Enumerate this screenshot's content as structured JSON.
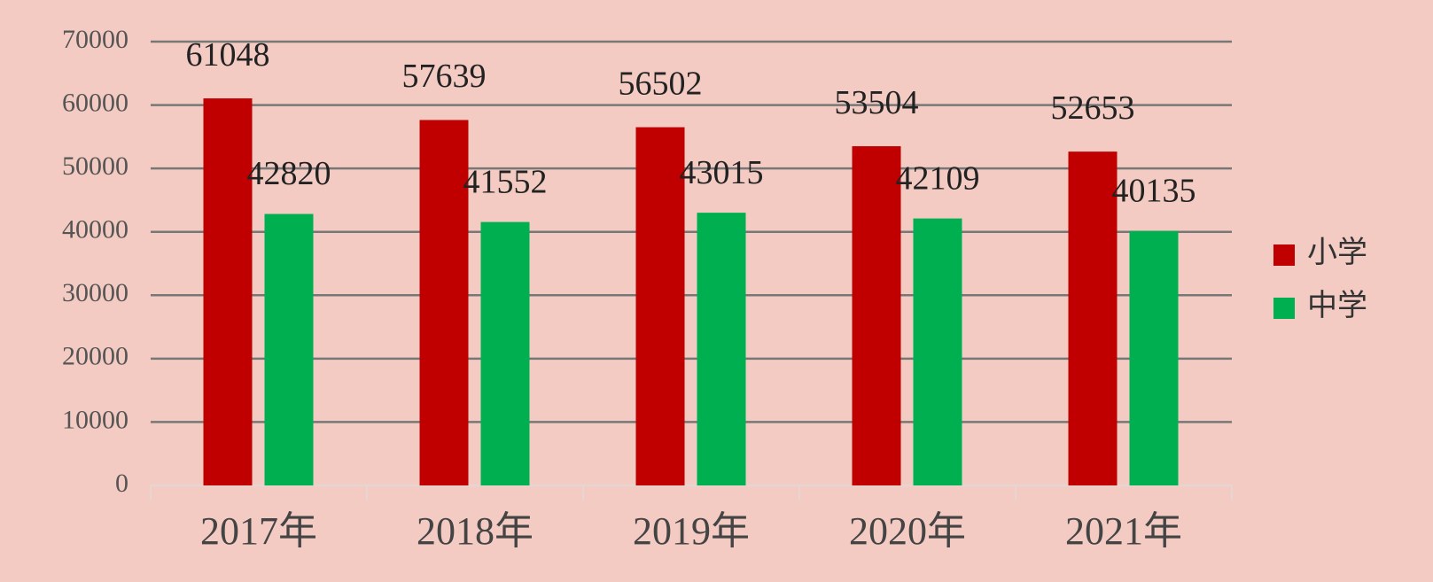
{
  "chart_data": {
    "type": "bar",
    "categories": [
      "2017年",
      "2018年",
      "2019年",
      "2020年",
      "2021年"
    ],
    "series": [
      {
        "name": "小学",
        "color": "#c00000",
        "values": [
          61048,
          57639,
          56502,
          53504,
          52653
        ]
      },
      {
        "name": "中学",
        "color": "#00b050",
        "values": [
          42820,
          41552,
          43015,
          42109,
          40135
        ]
      }
    ],
    "ylim": [
      0,
      70000
    ],
    "yticks": [
      0,
      10000,
      20000,
      30000,
      40000,
      50000,
      60000,
      70000
    ],
    "grid": true,
    "legend": "right"
  }
}
